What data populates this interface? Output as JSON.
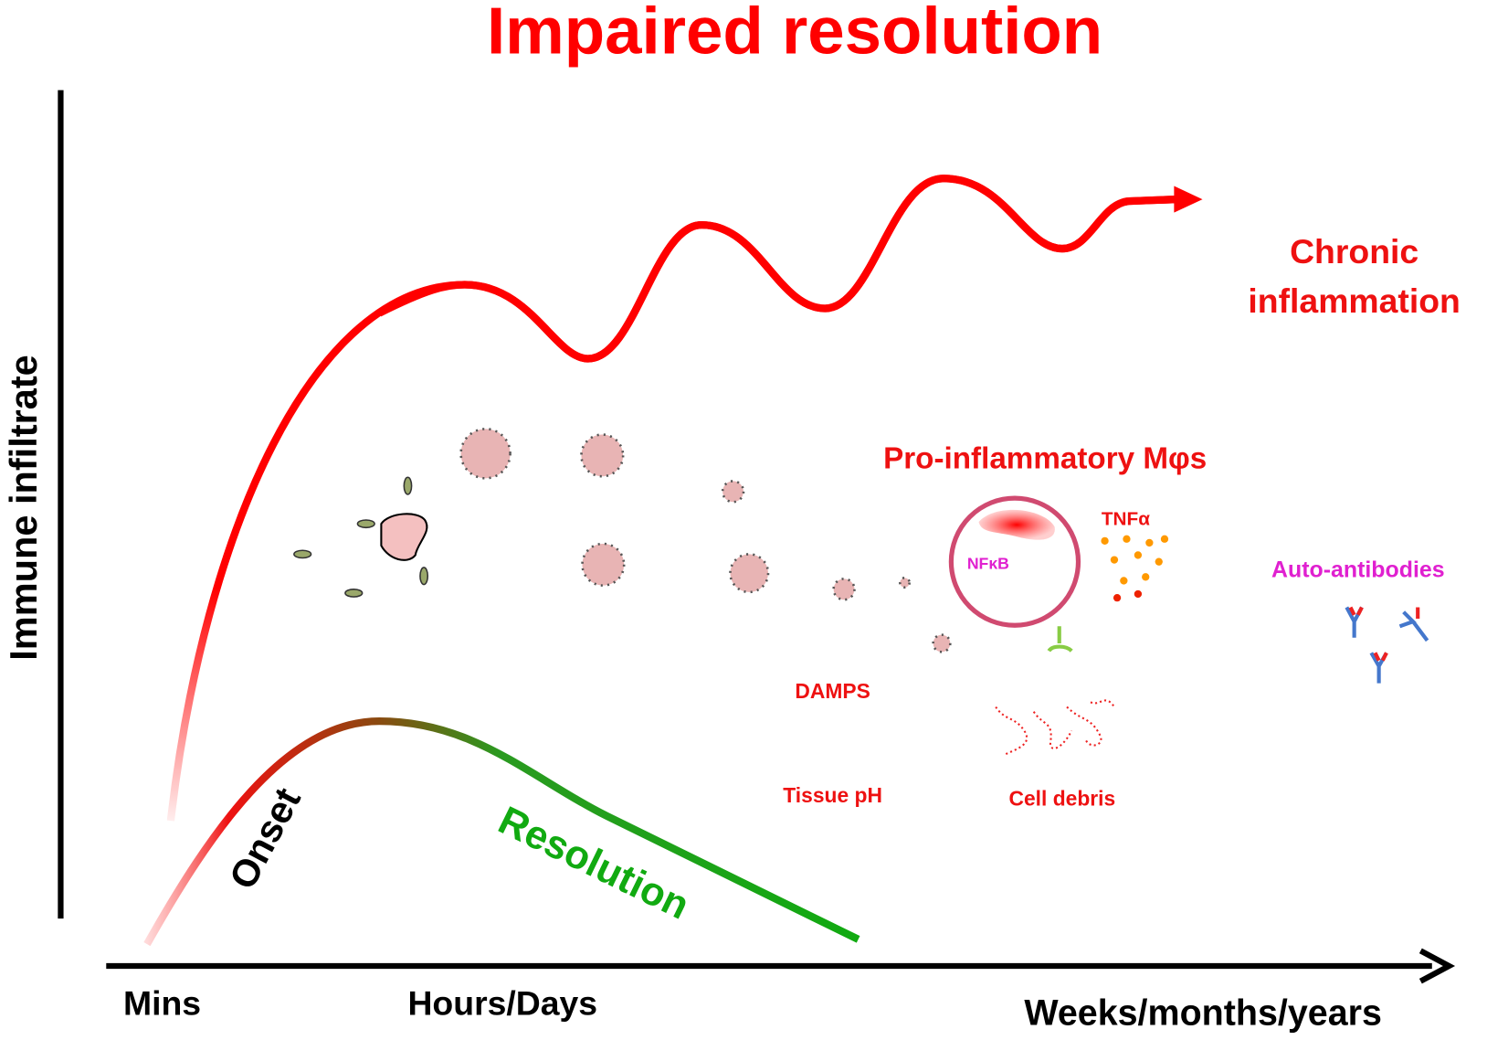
{
  "title": "Impaired resolution",
  "y_axis": {
    "label": "Immune infiltrate"
  },
  "x_axis": {
    "labels": [
      "Mins",
      "Hours/Days",
      "Weeks/months/years"
    ]
  },
  "curves": {
    "chronic": {
      "lines": [
        "Chronic",
        "inflammation"
      ]
    },
    "onset": {
      "label": "Onset"
    },
    "resolution": {
      "label": "Resolution"
    }
  },
  "annotations": {
    "macrophages": "Pro-inflammatory Mφs",
    "tnf": "TNFα",
    "nfkb": "NFκB",
    "auto_antibodies": "Auto-antibodies",
    "damps": "DAMPS",
    "tissue_ph": "Tissue pH",
    "cell_debris": "Cell debris"
  }
}
